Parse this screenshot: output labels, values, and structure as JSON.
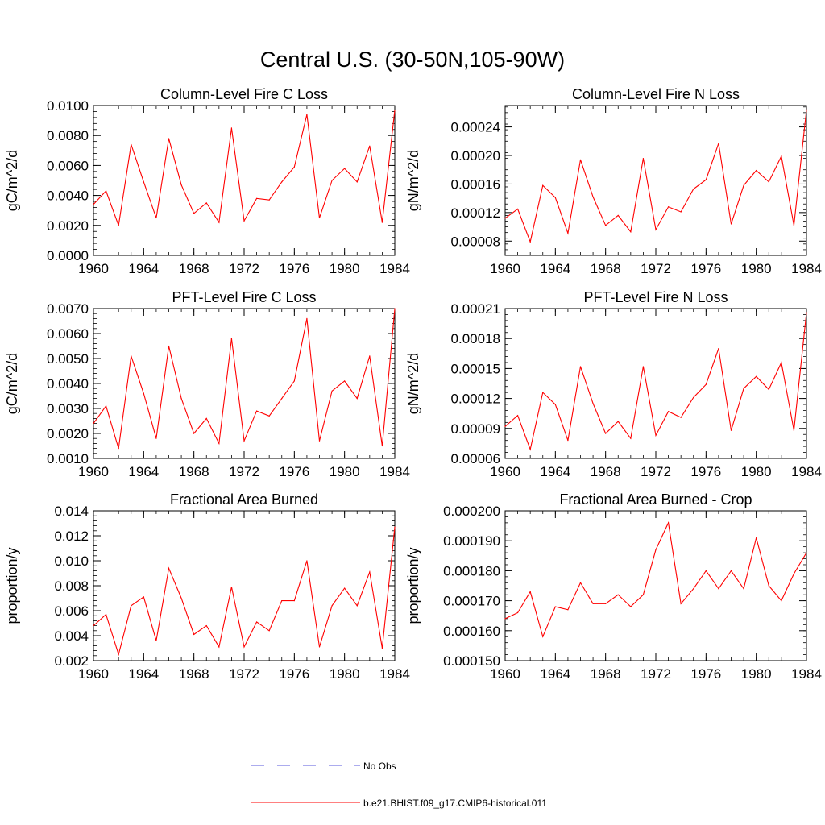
{
  "figure": {
    "title": "Central U.S. (30-50N,105-90W)"
  },
  "legend": {
    "items": [
      {
        "label": "No Obs",
        "style": "dashed",
        "color": "#5a5adc"
      },
      {
        "label": "b.e21.BHIST.f09_g17.CMIP6-historical.011",
        "style": "solid",
        "color": "#ff0000"
      }
    ]
  },
  "chart_data": [
    {
      "type": "line",
      "title": "Column-Level Fire C Loss",
      "xlabel": "",
      "ylabel": "gC/m^2/d",
      "xlim": [
        1960,
        1984
      ],
      "ylim": [
        0.0,
        0.01
      ],
      "xticks": [
        1960,
        1964,
        1968,
        1972,
        1976,
        1980,
        1984
      ],
      "yticks": [
        0.0,
        0.002,
        0.004,
        0.006,
        0.008,
        0.01
      ],
      "ytick_labels": [
        "0.0000",
        "0.0020",
        "0.0040",
        "0.0060",
        "0.0080",
        "0.0100"
      ],
      "color": "#ff0000",
      "x": [
        1960,
        1961,
        1962,
        1963,
        1964,
        1965,
        1966,
        1967,
        1968,
        1969,
        1970,
        1971,
        1972,
        1973,
        1974,
        1975,
        1976,
        1977,
        1978,
        1979,
        1980,
        1981,
        1982,
        1983,
        1984
      ],
      "y": [
        0.0034,
        0.0043,
        0.002,
        0.0074,
        0.0049,
        0.0025,
        0.0078,
        0.0047,
        0.0028,
        0.0035,
        0.0022,
        0.0085,
        0.0023,
        0.0038,
        0.0037,
        0.0049,
        0.0059,
        0.0094,
        0.0025,
        0.005,
        0.0058,
        0.0049,
        0.0073,
        0.0022,
        0.0097
      ]
    },
    {
      "type": "line",
      "title": "Column-Level Fire N Loss",
      "xlabel": "",
      "ylabel": "gN/m^2/d",
      "xlim": [
        1960,
        1984
      ],
      "ylim": [
        6e-05,
        0.00027
      ],
      "xticks": [
        1960,
        1964,
        1968,
        1972,
        1976,
        1980,
        1984
      ],
      "yticks": [
        8e-05,
        0.00012,
        0.00016,
        0.0002,
        0.00024
      ],
      "ytick_labels": [
        "0.00008",
        "0.00012",
        "0.00016",
        "0.00020",
        "0.00024"
      ],
      "color": "#ff0000",
      "x": [
        1960,
        1961,
        1962,
        1963,
        1964,
        1965,
        1966,
        1967,
        1968,
        1969,
        1970,
        1971,
        1972,
        1973,
        1974,
        1975,
        1976,
        1977,
        1978,
        1979,
        1980,
        1981,
        1982,
        1983,
        1984
      ],
      "y": [
        0.000112,
        0.000125,
        7.9e-05,
        0.000158,
        0.000141,
        9.1e-05,
        0.000194,
        0.000142,
        0.000102,
        0.000116,
        9.3e-05,
        0.000196,
        9.6e-05,
        0.000128,
        0.000121,
        0.000153,
        0.000166,
        0.000217,
        0.000104,
        0.000158,
        0.000179,
        0.000163,
        0.000199,
        0.000102,
        0.000264
      ]
    },
    {
      "type": "line",
      "title": "PFT-Level Fire C Loss",
      "xlabel": "",
      "ylabel": "gC/m^2/d",
      "xlim": [
        1960,
        1984
      ],
      "ylim": [
        0.001,
        0.007
      ],
      "xticks": [
        1960,
        1964,
        1968,
        1972,
        1976,
        1980,
        1984
      ],
      "yticks": [
        0.001,
        0.002,
        0.003,
        0.004,
        0.005,
        0.006,
        0.007
      ],
      "ytick_labels": [
        "0.0010",
        "0.0020",
        "0.0030",
        "0.0040",
        "0.0050",
        "0.0060",
        "0.0070"
      ],
      "color": "#ff0000",
      "x": [
        1960,
        1961,
        1962,
        1963,
        1964,
        1965,
        1966,
        1967,
        1968,
        1969,
        1970,
        1971,
        1972,
        1973,
        1974,
        1975,
        1976,
        1977,
        1978,
        1979,
        1980,
        1981,
        1982,
        1983,
        1984
      ],
      "y": [
        0.0024,
        0.0031,
        0.0014,
        0.0051,
        0.0036,
        0.0018,
        0.0055,
        0.0034,
        0.002,
        0.0026,
        0.0016,
        0.0058,
        0.0017,
        0.0029,
        0.0027,
        0.0034,
        0.0041,
        0.0066,
        0.0017,
        0.0037,
        0.0041,
        0.0034,
        0.0051,
        0.0015,
        0.007
      ]
    },
    {
      "type": "line",
      "title": "PFT-Level Fire N Loss",
      "xlabel": "",
      "ylabel": "gN/m^2/d",
      "xlim": [
        1960,
        1984
      ],
      "ylim": [
        6e-05,
        0.00021
      ],
      "xticks": [
        1960,
        1964,
        1968,
        1972,
        1976,
        1980,
        1984
      ],
      "yticks": [
        6e-05,
        9e-05,
        0.00012,
        0.00015,
        0.00018,
        0.00021
      ],
      "ytick_labels": [
        "0.00006",
        "0.00009",
        "0.00012",
        "0.00015",
        "0.00018",
        "0.00021"
      ],
      "color": "#ff0000",
      "x": [
        1960,
        1961,
        1962,
        1963,
        1964,
        1965,
        1966,
        1967,
        1968,
        1969,
        1970,
        1971,
        1972,
        1973,
        1974,
        1975,
        1976,
        1977,
        1978,
        1979,
        1980,
        1981,
        1982,
        1983,
        1984
      ],
      "y": [
        9.2e-05,
        0.000103,
        6.9e-05,
        0.000126,
        0.000114,
        7.8e-05,
        0.000152,
        0.000115,
        8.5e-05,
        9.7e-05,
        8e-05,
        0.000152,
        8.3e-05,
        0.000107,
        0.000101,
        0.000121,
        0.000134,
        0.00017,
        8.8e-05,
        0.00013,
        0.000142,
        0.000129,
        0.000156,
        8.8e-05,
        0.000206
      ]
    },
    {
      "type": "line",
      "title": "Fractional Area Burned",
      "xlabel": "",
      "ylabel": "proportion/y",
      "xlim": [
        1960,
        1984
      ],
      "ylim": [
        0.002,
        0.014
      ],
      "xticks": [
        1960,
        1964,
        1968,
        1972,
        1976,
        1980,
        1984
      ],
      "yticks": [
        0.002,
        0.004,
        0.006,
        0.008,
        0.01,
        0.012,
        0.014
      ],
      "ytick_labels": [
        "0.002",
        "0.004",
        "0.006",
        "0.008",
        "0.010",
        "0.012",
        "0.014"
      ],
      "color": "#ff0000",
      "x": [
        1960,
        1961,
        1962,
        1963,
        1964,
        1965,
        1966,
        1967,
        1968,
        1969,
        1970,
        1971,
        1972,
        1973,
        1974,
        1975,
        1976,
        1977,
        1978,
        1979,
        1980,
        1981,
        1982,
        1983,
        1984
      ],
      "y": [
        0.0048,
        0.0057,
        0.0025,
        0.0064,
        0.0071,
        0.0036,
        0.0094,
        0.007,
        0.0041,
        0.0048,
        0.0031,
        0.0079,
        0.0031,
        0.0051,
        0.0044,
        0.0068,
        0.0068,
        0.01,
        0.0031,
        0.0064,
        0.0078,
        0.0064,
        0.0091,
        0.003,
        0.0127
      ]
    },
    {
      "type": "line",
      "title": "Fractional Area Burned - Crop",
      "xlabel": "",
      "ylabel": "proportion/y",
      "xlim": [
        1960,
        1984
      ],
      "ylim": [
        0.00015,
        0.0002
      ],
      "xticks": [
        1960,
        1964,
        1968,
        1972,
        1976,
        1980,
        1984
      ],
      "yticks": [
        0.00015,
        0.00016,
        0.00017,
        0.00018,
        0.00019,
        0.0002
      ],
      "ytick_labels": [
        "0.000150",
        "0.000160",
        "0.000170",
        "0.000180",
        "0.000190",
        "0.000200"
      ],
      "color": "#ff0000",
      "x": [
        1960,
        1961,
        1962,
        1963,
        1964,
        1965,
        1966,
        1967,
        1968,
        1969,
        1970,
        1971,
        1972,
        1973,
        1974,
        1975,
        1976,
        1977,
        1978,
        1979,
        1980,
        1981,
        1982,
        1983,
        1984
      ],
      "y": [
        0.000164,
        0.000166,
        0.000173,
        0.000158,
        0.000168,
        0.000167,
        0.000176,
        0.000169,
        0.000169,
        0.000172,
        0.000168,
        0.000172,
        0.000187,
        0.000196,
        0.000169,
        0.000174,
        0.00018,
        0.000174,
        0.00018,
        0.000174,
        0.000191,
        0.000175,
        0.00017,
        0.000179,
        0.000186
      ]
    }
  ]
}
